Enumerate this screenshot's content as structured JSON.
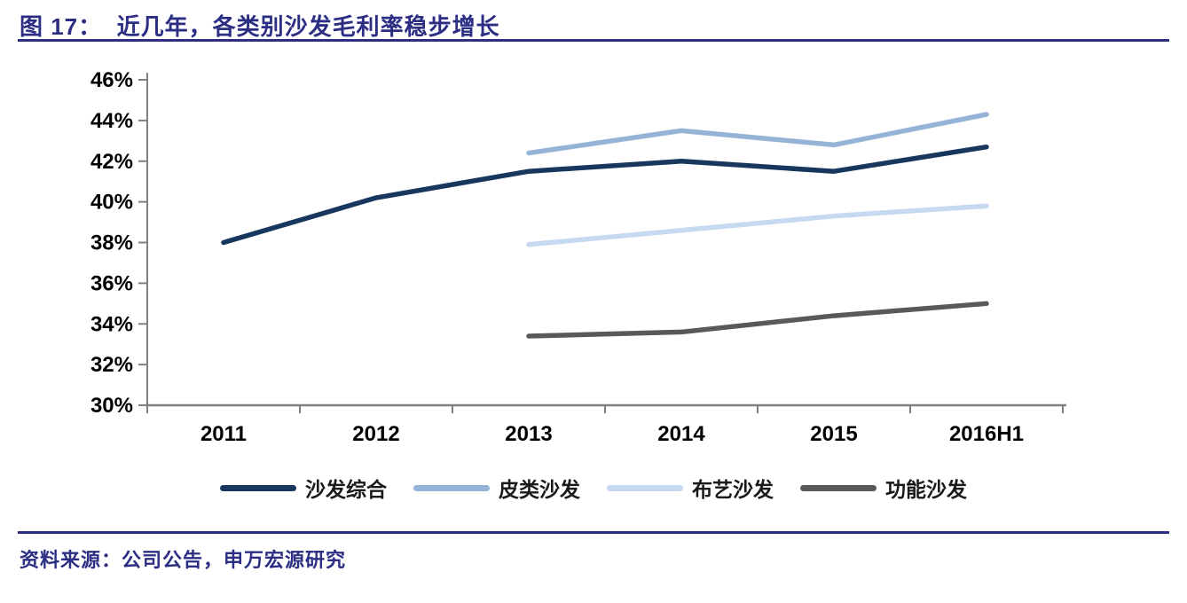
{
  "header": {
    "title": "图 17：  近几年，各类别沙发毛利率稳步增长"
  },
  "footer": {
    "source": "资料来源：公司公告，申万宏源研究"
  },
  "colors": {
    "accent_navy": "#2B2E83",
    "axis_line": "#808080",
    "tick_label": "#000000"
  },
  "chart_data": {
    "type": "line",
    "title": "近几年，各类别沙发毛利率稳步增长",
    "figure_label": "图 17",
    "categories": [
      "2011",
      "2012",
      "2013",
      "2014",
      "2015",
      "2016H1"
    ],
    "series": [
      {
        "name": "沙发综合",
        "color": "#17375E",
        "values": [
          38.0,
          40.2,
          41.5,
          42.0,
          41.5,
          42.7
        ]
      },
      {
        "name": "皮类沙发",
        "color": "#95B3D7",
        "values": [
          null,
          null,
          42.4,
          43.5,
          42.8,
          44.3
        ]
      },
      {
        "name": "布艺沙发",
        "color": "#C6D9F1",
        "values": [
          null,
          null,
          37.9,
          38.6,
          39.3,
          39.8
        ]
      },
      {
        "name": "功能沙发",
        "color": "#595959",
        "values": [
          null,
          null,
          33.4,
          33.6,
          34.4,
          35.0
        ]
      }
    ],
    "ylim": [
      30,
      46
    ],
    "ytick_step": 2,
    "ytick_format": "percent",
    "grid": false,
    "legend_position": "bottom"
  }
}
